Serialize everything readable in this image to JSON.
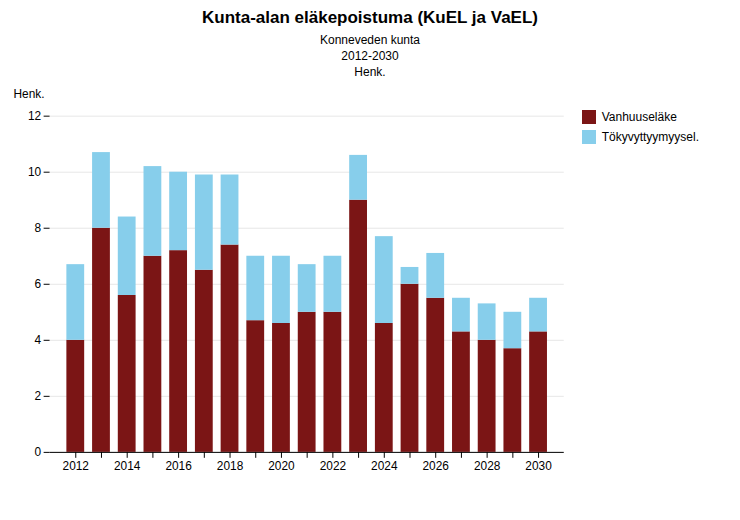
{
  "chart_data": {
    "type": "bar",
    "stacked": true,
    "title": "Kunta-alan eläkepoistuma (KuEL ja VaEL)",
    "subtitle": [
      "Konneveden kunta",
      "2012-2030",
      "Henk."
    ],
    "ylabel": "Henk.",
    "categories": [
      "2012",
      null,
      "2014",
      null,
      "2016",
      null,
      "2018",
      null,
      "2020",
      null,
      "2022",
      null,
      "2024",
      null,
      "2026",
      null,
      "2028",
      null,
      "2030"
    ],
    "series": [
      {
        "name": "Vanhuuseläke",
        "color": "#7B1515",
        "values": [
          4,
          8,
          5.6,
          7,
          7.2,
          6.5,
          7.4,
          4.7,
          4.6,
          5.0,
          5.0,
          9.0,
          4.6,
          6.0,
          5.5,
          4.3,
          4.0,
          3.7,
          4.3
        ]
      },
      {
        "name": "Tökyvyttyymyysel.",
        "color": "#87CEEB",
        "values": [
          2.7,
          2.7,
          2.8,
          3.2,
          2.8,
          3.4,
          2.5,
          2.3,
          2.4,
          1.7,
          2.0,
          1.6,
          3.1,
          0.6,
          1.6,
          1.2,
          1.3,
          1.3,
          1.2
        ]
      }
    ],
    "ylim": [
      0,
      12
    ],
    "yticks": [
      0,
      2,
      4,
      6,
      8,
      10,
      12
    ],
    "grid": true,
    "legend": "right"
  }
}
